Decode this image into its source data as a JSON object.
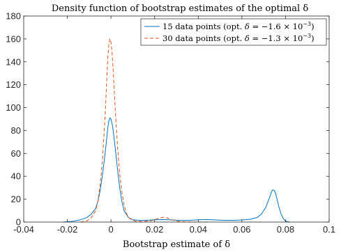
{
  "chart_data": {
    "type": "line",
    "title": "Density function of bootstrap estimates of the optimal δ",
    "xlabel": "Bootstrap estimate of δ",
    "ylabel": "",
    "xlim": [
      -0.04,
      0.1
    ],
    "ylim": [
      0,
      180
    ],
    "x_ticks": [
      -0.04,
      -0.02,
      0,
      0.02,
      0.04,
      0.06,
      0.08,
      0.1
    ],
    "x_tick_labels": [
      "-0.04",
      "-0.02",
      "0",
      "0.02",
      "0.04",
      "0.06",
      "0.08",
      "0.1"
    ],
    "y_ticks": [
      0,
      20,
      40,
      60,
      80,
      100,
      120,
      140,
      160,
      180
    ],
    "y_tick_labels": [
      "0",
      "20",
      "40",
      "60",
      "80",
      "100",
      "120",
      "140",
      "160",
      "180"
    ],
    "grid": false,
    "legend_position": "top-right",
    "series": [
      {
        "name": "15 data points (opt. δ = −1.6 × 10⁻³)",
        "legend_prefix": "15 data points (opt. ",
        "legend_delta": "δ",
        "legend_mid": " = −1.6 × 10",
        "legend_exp": "−3",
        "legend_suffix": ")",
        "color": "#0072BD",
        "dash": "solid",
        "x": [
          -0.022,
          -0.018,
          -0.014,
          -0.011,
          -0.009,
          -0.007,
          -0.006,
          -0.005,
          -0.004,
          -0.003,
          -0.002,
          -0.0015,
          -0.001,
          -0.0005,
          0,
          0.0005,
          0.001,
          0.002,
          0.003,
          0.004,
          0.005,
          0.006,
          0.008,
          0.01,
          0.013,
          0.016,
          0.02,
          0.024,
          0.028,
          0.032,
          0.036,
          0.04,
          0.044,
          0.048,
          0.052,
          0.056,
          0.06,
          0.064,
          0.067,
          0.069,
          0.071,
          0.072,
          0.073,
          0.0735,
          0.074,
          0.0745,
          0.075,
          0.0755,
          0.076,
          0.0765,
          0.077,
          0.078,
          0.079,
          0.08,
          0.081,
          0.082
        ],
        "y": [
          0,
          0.5,
          2,
          4,
          7,
          12,
          18,
          27,
          40,
          55,
          72,
          82,
          88,
          91,
          90,
          86,
          80,
          64,
          46,
          30,
          18,
          10,
          4,
          2,
          1.5,
          1.5,
          2,
          2.2,
          1.8,
          1.5,
          1.5,
          2,
          2.2,
          1.8,
          1.5,
          1.5,
          1.8,
          2.5,
          4,
          7,
          13,
          18,
          23,
          26,
          28,
          28,
          27,
          25,
          21,
          17,
          13,
          7,
          3,
          1,
          0.3,
          0
        ]
      },
      {
        "name": "30 data points (opt. δ = −1.3 × 10⁻³)",
        "legend_prefix": "30 data points (opt. ",
        "legend_delta": "δ",
        "legend_mid": " = −1.3 × 10",
        "legend_exp": "−3",
        "legend_suffix": ")",
        "color": "#D95319",
        "dash": "dashed",
        "x": [
          -0.014,
          -0.011,
          -0.009,
          -0.007,
          -0.006,
          -0.005,
          -0.004,
          -0.003,
          -0.0025,
          -0.002,
          -0.0015,
          -0.001,
          -0.0005,
          0,
          0.0005,
          0.001,
          0.0015,
          0.002,
          0.003,
          0.004,
          0.005,
          0.006,
          0.007,
          0.008,
          0.01,
          0.012,
          0.015,
          0.018,
          0.02,
          0.022,
          0.024,
          0.026,
          0.028,
          0.03,
          0.033,
          0.036,
          0.04,
          0.045
        ],
        "y": [
          0,
          1,
          4,
          10,
          18,
          32,
          52,
          82,
          100,
          122,
          142,
          155,
          160,
          157,
          148,
          133,
          115,
          97,
          66,
          42,
          26,
          15,
          8,
          4,
          1.5,
          0.5,
          0.5,
          1,
          2,
          3.5,
          4.2,
          3.5,
          2,
          0.8,
          0.3,
          0.1,
          0,
          0
        ]
      }
    ]
  }
}
